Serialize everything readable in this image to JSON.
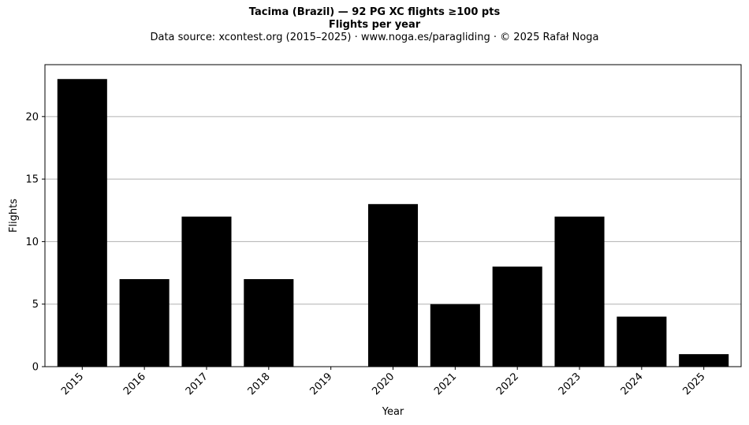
{
  "chart_data": {
    "type": "bar",
    "title": "Tacima (Brazil)  —  92 PG XC flights ≥100 pts",
    "subtitle": "Flights per year",
    "source_line": "Data source: xcontest.org (2015–2025)  ·  www.noga.es/paragliding  ·  © 2025 Rafał Noga",
    "xlabel": "Year",
    "ylabel": "Flights",
    "categories": [
      "2015",
      "2016",
      "2017",
      "2018",
      "2019",
      "2020",
      "2021",
      "2022",
      "2023",
      "2024",
      "2025"
    ],
    "values": [
      23,
      7,
      12,
      7,
      0,
      13,
      5,
      8,
      12,
      4,
      1
    ],
    "ylim": [
      0,
      24.15
    ],
    "yticks": [
      0,
      5,
      10,
      15,
      20
    ],
    "grid": "horizontal",
    "bar_color": "#000000",
    "grid_color": "#b0b0b0"
  }
}
